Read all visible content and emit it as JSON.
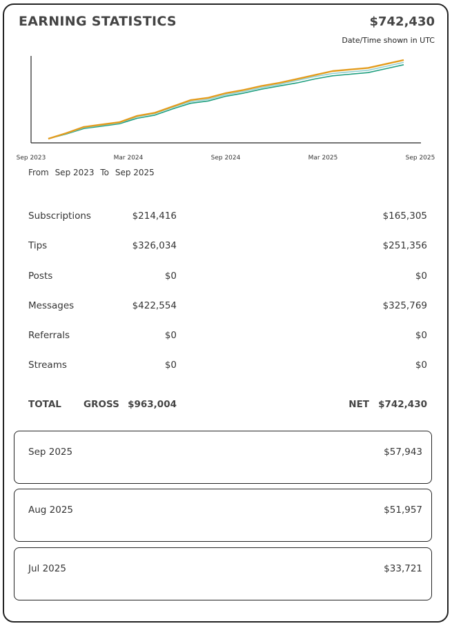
{
  "header": {
    "title": "EARNING STATISTICS",
    "total": "$742,430",
    "timezone_note": "Date/Time shown in UTC"
  },
  "chart_data": {
    "type": "line",
    "title": "",
    "xlabel": "",
    "ylabel": "",
    "x_ticks": [
      "Sep 2023",
      "Mar 2024",
      "Sep 2024",
      "Mar 2025",
      "Sep 2025"
    ],
    "grid": false,
    "series": [
      {
        "color": "#E39B1C",
        "values": [
          0.0,
          0.07,
          0.15,
          0.18,
          0.21,
          0.29,
          0.33,
          0.41,
          0.49,
          0.52,
          0.58,
          0.62,
          0.67,
          0.71,
          0.76,
          0.81,
          0.86,
          0.88,
          0.9,
          0.95,
          1.0
        ]
      },
      {
        "color": "#8FCFD1",
        "values": [
          0.0,
          0.065,
          0.14,
          0.17,
          0.2,
          0.28,
          0.32,
          0.4,
          0.47,
          0.5,
          0.56,
          0.6,
          0.65,
          0.69,
          0.74,
          0.79,
          0.83,
          0.85,
          0.87,
          0.92,
          0.97
        ]
      },
      {
        "color": "#1E9E7E",
        "values": [
          0.0,
          0.06,
          0.13,
          0.16,
          0.19,
          0.26,
          0.3,
          0.38,
          0.45,
          0.48,
          0.54,
          0.58,
          0.63,
          0.67,
          0.71,
          0.76,
          0.8,
          0.82,
          0.84,
          0.89,
          0.94
        ]
      }
    ]
  },
  "period": {
    "from_label": "From",
    "from": "Sep 2023",
    "to_label": "To",
    "to": "Sep 2025"
  },
  "categories": [
    {
      "label": "Subscriptions",
      "gross": "$214,416",
      "net": "$165,305"
    },
    {
      "label": "Tips",
      "gross": "$326,034",
      "net": "$251,356"
    },
    {
      "label": "Posts",
      "gross": "$0",
      "net": "$0"
    },
    {
      "label": "Messages",
      "gross": "$422,554",
      "net": "$325,769"
    },
    {
      "label": "Referrals",
      "gross": "$0",
      "net": "$0"
    },
    {
      "label": "Streams",
      "gross": "$0",
      "net": "$0"
    }
  ],
  "totals": {
    "total_label": "TOTAL",
    "gross_label": "GROSS",
    "gross": "$963,004",
    "net_label": "NET",
    "net": "$742,430"
  },
  "months": [
    {
      "label": "Sep 2025",
      "amount": "$57,943"
    },
    {
      "label": "Aug 2025",
      "amount": "$51,957"
    },
    {
      "label": "Jul 2025",
      "amount": "$33,721"
    }
  ]
}
